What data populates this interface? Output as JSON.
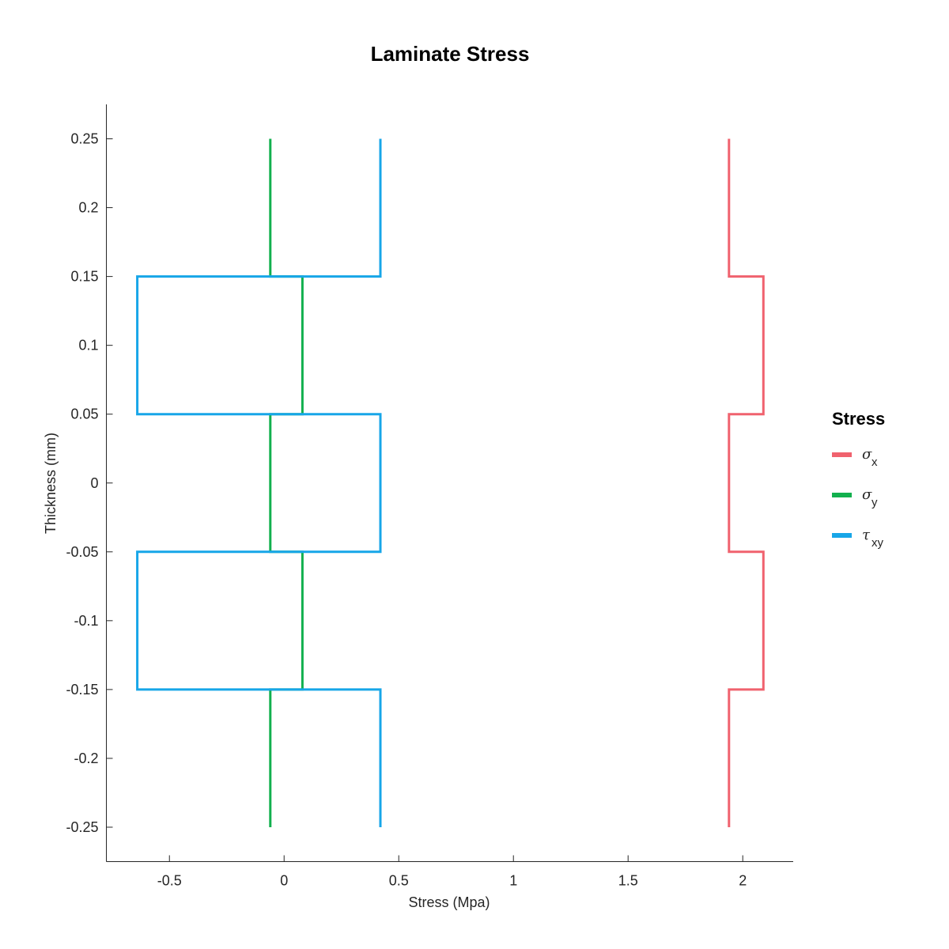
{
  "chart_data": {
    "type": "line",
    "title": "Laminate Stress",
    "xlabel": "Stress (Mpa)",
    "ylabel": "Thickness (mm)",
    "xlim": [
      -0.775,
      2.22
    ],
    "ylim": [
      -0.275,
      0.275
    ],
    "xticks": [
      -0.5,
      0,
      0.5,
      1,
      1.5,
      2
    ],
    "xtick_labels": [
      "-0.5",
      "0",
      "0.5",
      "1",
      "1.5",
      "2"
    ],
    "yticks": [
      0.25,
      0.2,
      0.15,
      0.1,
      0.05,
      0,
      -0.05,
      -0.1,
      -0.15,
      -0.2,
      -0.25
    ],
    "ytick_labels": [
      "0.25",
      "0.2",
      "0.15",
      "0.1",
      "0.05",
      "0",
      "-0.05",
      "-0.1",
      "-0.15",
      "-0.2",
      "-0.25"
    ],
    "grid": false,
    "legend": {
      "title": "Stress",
      "placement": "right"
    },
    "series": [
      {
        "symbol": "σ",
        "subscript": "x",
        "color": "#f0626e",
        "points": [
          [
            1.94,
            0.25
          ],
          [
            1.94,
            0.15
          ],
          [
            2.09,
            0.15
          ],
          [
            2.09,
            0.05
          ],
          [
            1.94,
            0.05
          ],
          [
            1.94,
            -0.05
          ],
          [
            2.09,
            -0.05
          ],
          [
            2.09,
            -0.15
          ],
          [
            1.94,
            -0.15
          ],
          [
            1.94,
            -0.25
          ]
        ]
      },
      {
        "symbol": "σ",
        "subscript": "y",
        "color": "#12b04e",
        "points": [
          [
            -0.06,
            0.25
          ],
          [
            -0.06,
            0.15
          ],
          [
            0.08,
            0.15
          ],
          [
            0.08,
            0.05
          ],
          [
            -0.06,
            0.05
          ],
          [
            -0.06,
            -0.05
          ],
          [
            0.08,
            -0.05
          ],
          [
            0.08,
            -0.15
          ],
          [
            -0.06,
            -0.15
          ],
          [
            -0.06,
            -0.25
          ]
        ]
      },
      {
        "symbol": "τ",
        "subscript": "xy",
        "color": "#17a6e8",
        "points": [
          [
            0.42,
            0.25
          ],
          [
            0.42,
            0.15
          ],
          [
            -0.64,
            0.15
          ],
          [
            -0.64,
            0.05
          ],
          [
            0.42,
            0.05
          ],
          [
            0.42,
            -0.05
          ],
          [
            -0.64,
            -0.05
          ],
          [
            -0.64,
            -0.15
          ],
          [
            0.42,
            -0.15
          ],
          [
            0.42,
            -0.25
          ]
        ]
      }
    ]
  }
}
